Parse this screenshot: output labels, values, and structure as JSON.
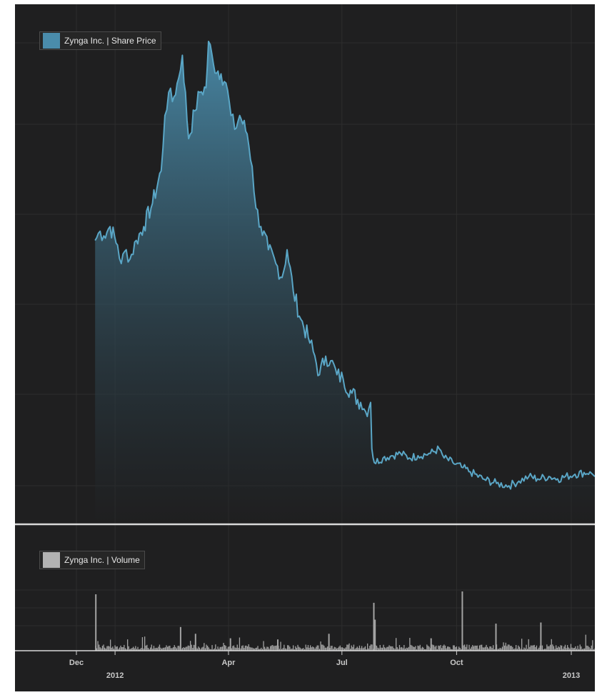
{
  "colors": {
    "background": "#1f1f20",
    "price_line": "#5aa6c6",
    "price_fill_top": "#4a8cab",
    "volume": "#a3a3a3",
    "volume_swatch": "#b3b3b3",
    "grid": "#2e2e2e",
    "separator": "#d9d9d9"
  },
  "legend": {
    "price": "Zynga Inc. | Share Price",
    "volume": "Zynga Inc. | Volume"
  },
  "chart_data": [
    {
      "type": "area",
      "name": "Zynga Inc. | Share Price",
      "x_axis": "date",
      "grid": true,
      "legend_position": "top-left",
      "anchors": [
        [
          "2011-12-16",
          0.57
        ],
        [
          "2011-12-20",
          0.59
        ],
        [
          "2011-12-23",
          0.58
        ],
        [
          "2011-12-28",
          0.6
        ],
        [
          "2012-01-03",
          0.56
        ],
        [
          "2012-01-06",
          0.52
        ],
        [
          "2012-01-10",
          0.55
        ],
        [
          "2012-01-13",
          0.53
        ],
        [
          "2012-01-18",
          0.57
        ],
        [
          "2012-01-24",
          0.6
        ],
        [
          "2012-01-31",
          0.65
        ],
        [
          "2012-02-07",
          0.72
        ],
        [
          "2012-02-10",
          0.84
        ],
        [
          "2012-02-13",
          0.89
        ],
        [
          "2012-02-16",
          0.87
        ],
        [
          "2012-02-21",
          0.92
        ],
        [
          "2012-02-24",
          0.97
        ],
        [
          "2012-02-29",
          0.79
        ],
        [
          "2012-03-05",
          0.85
        ],
        [
          "2012-03-09",
          0.89
        ],
        [
          "2012-03-14",
          0.9
        ],
        [
          "2012-03-16",
          1.0
        ],
        [
          "2012-03-20",
          0.95
        ],
        [
          "2012-03-26",
          0.93
        ],
        [
          "2012-03-30",
          0.91
        ],
        [
          "2012-04-03",
          0.84
        ],
        [
          "2012-04-06",
          0.81
        ],
        [
          "2012-04-10",
          0.84
        ],
        [
          "2012-04-16",
          0.8
        ],
        [
          "2012-04-20",
          0.73
        ],
        [
          "2012-04-23",
          0.64
        ],
        [
          "2012-04-27",
          0.6
        ],
        [
          "2012-05-03",
          0.55
        ],
        [
          "2012-05-09",
          0.52
        ],
        [
          "2012-05-14",
          0.49
        ],
        [
          "2012-05-18",
          0.55
        ],
        [
          "2012-05-23",
          0.46
        ],
        [
          "2012-05-29",
          0.4
        ],
        [
          "2012-06-04",
          0.36
        ],
        [
          "2012-06-08",
          0.33
        ],
        [
          "2012-06-13",
          0.28
        ],
        [
          "2012-06-18",
          0.32
        ],
        [
          "2012-06-22",
          0.31
        ],
        [
          "2012-06-27",
          0.28
        ],
        [
          "2012-07-02",
          0.27
        ],
        [
          "2012-07-09",
          0.24
        ],
        [
          "2012-07-16",
          0.22
        ],
        [
          "2012-07-20",
          0.2
        ],
        [
          "2012-07-24",
          0.22
        ],
        [
          "2012-07-25",
          0.12
        ],
        [
          "2012-07-27",
          0.09
        ],
        [
          "2012-08-03",
          0.1
        ],
        [
          "2012-08-10",
          0.105
        ],
        [
          "2012-08-17",
          0.11
        ],
        [
          "2012-08-24",
          0.1
        ],
        [
          "2012-08-31",
          0.105
        ],
        [
          "2012-09-10",
          0.11
        ],
        [
          "2012-09-17",
          0.12
        ],
        [
          "2012-09-21",
          0.1
        ],
        [
          "2012-09-28",
          0.09
        ],
        [
          "2012-10-05",
          0.08
        ],
        [
          "2012-10-12",
          0.07
        ],
        [
          "2012-10-22",
          0.055
        ],
        [
          "2012-11-02",
          0.045
        ],
        [
          "2012-11-12",
          0.04
        ],
        [
          "2012-11-20",
          0.05
        ],
        [
          "2012-11-28",
          0.06
        ],
        [
          "2012-12-05",
          0.055
        ],
        [
          "2012-12-14",
          0.06
        ],
        [
          "2012-12-21",
          0.055
        ],
        [
          "2013-01-04",
          0.065
        ],
        [
          "2013-01-16",
          0.07
        ]
      ]
    },
    {
      "type": "bar",
      "name": "Zynga Inc. | Volume",
      "x_axis": "date",
      "legend_position": "top-left",
      "baseline_level": 0.08,
      "spikes": [
        [
          "2011-12-16",
          1.0
        ],
        [
          "2012-02-22",
          0.42
        ],
        [
          "2012-03-05",
          0.3
        ],
        [
          "2012-04-02",
          0.22
        ],
        [
          "2012-05-10",
          0.2
        ],
        [
          "2012-07-26",
          0.85
        ],
        [
          "2012-07-27",
          0.55
        ],
        [
          "2012-10-05",
          1.05
        ],
        [
          "2012-11-01",
          0.48
        ],
        [
          "2012-12-07",
          0.5
        ],
        [
          "2012-06-20",
          0.3
        ],
        [
          "2012-09-10",
          0.22
        ]
      ]
    }
  ],
  "x_axis": {
    "ticks": [
      {
        "label": "Dec",
        "date": "2011-12-01"
      },
      {
        "label": "2012",
        "date": "2012-01-01",
        "major": true
      },
      {
        "label": "Apr",
        "date": "2012-04-01"
      },
      {
        "label": "Jul",
        "date": "2012-07-01"
      },
      {
        "label": "Oct",
        "date": "2012-10-01"
      },
      {
        "label": "2013",
        "date": "2013-01-01",
        "major": true
      }
    ]
  }
}
